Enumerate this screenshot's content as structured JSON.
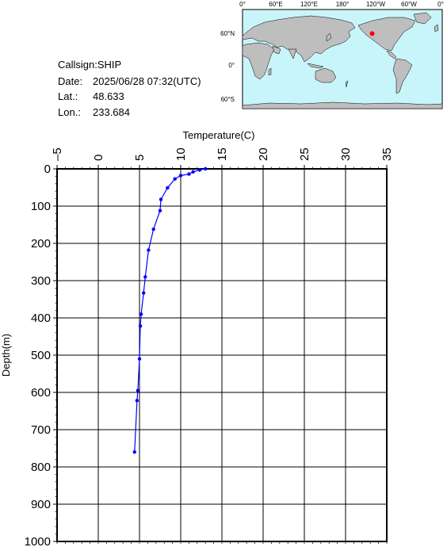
{
  "info": {
    "callsign": "Callsign:SHIP",
    "date_label": "Date:",
    "date_value": "2025/06/28 07:32(UTC)",
    "lat_label": "Lat.:",
    "lat_value": "48.633",
    "lon_label": "Lon.:",
    "lon_value": "233.684"
  },
  "map": {
    "top_labels": [
      "0°",
      "60°E",
      "120°E",
      "180°",
      "120°W",
      "60°W",
      "0°"
    ],
    "left_labels": [
      "60°N",
      "0°",
      "60°S"
    ],
    "ocean_color": "#c8f5fa",
    "land_color": "#bebebe",
    "station_color": "#ff0000",
    "station": {
      "lon": 233.684,
      "lat": 48.633
    }
  },
  "chart_data": {
    "type": "line",
    "xlabel": "Temperature(C)",
    "ylabel": "Depth(m)",
    "xlim": [
      -5,
      35
    ],
    "ylim": [
      0,
      1000
    ],
    "y_inverted": true,
    "x_axis_position": "top",
    "xticks": [
      -5,
      0,
      5,
      10,
      15,
      20,
      25,
      30,
      35
    ],
    "yticks": [
      0,
      100,
      200,
      300,
      400,
      500,
      600,
      700,
      800,
      900,
      1000
    ],
    "grid": true,
    "line_color": "#0000ff",
    "series": [
      {
        "x": [
          13.0,
          12.3,
          11.5,
          11.0,
          10.0,
          9.3,
          8.4,
          7.6,
          7.5,
          6.7,
          6.1,
          5.7,
          5.5,
          5.2,
          5.1,
          5.0,
          4.8,
          4.7,
          4.4
        ],
        "y": [
          0,
          3,
          8,
          14,
          18,
          27,
          51,
          82,
          112,
          162,
          218,
          290,
          333,
          390,
          422,
          510,
          595,
          622,
          760
        ]
      }
    ]
  }
}
